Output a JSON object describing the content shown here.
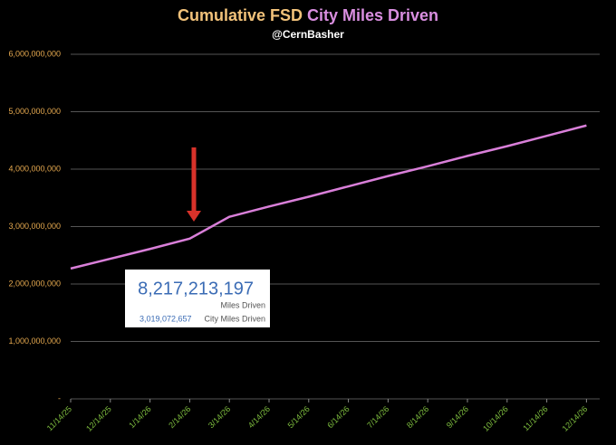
{
  "chart_data": {
    "type": "line",
    "title": [
      "Cumulative FSD",
      "City Miles Driven"
    ],
    "subtitle": "@CernBasher",
    "categories": [
      "11/14/25",
      "12/14/25",
      "1/14/26",
      "2/14/26",
      "3/14/26",
      "4/14/26",
      "5/14/26",
      "6/14/26",
      "7/14/26",
      "8/14/26",
      "9/14/26",
      "10/14/26",
      "11/14/26",
      "12/14/26"
    ],
    "series": [
      {
        "name": "City Miles Driven",
        "color": "#d97fd9",
        "values": [
          2270000000,
          2440000000,
          2610000000,
          2790000000,
          3170000000,
          3350000000,
          3520000000,
          3700000000,
          3880000000,
          4050000000,
          4230000000,
          4400000000,
          4580000000,
          4760000000
        ]
      }
    ],
    "ylim": [
      0,
      6000000000
    ],
    "yticks": [
      {
        "value": 0,
        "label": "-"
      },
      {
        "value": 1000000000,
        "label": "1,000,000,000"
      },
      {
        "value": 2000000000,
        "label": "2,000,000,000"
      },
      {
        "value": 3000000000,
        "label": "3,000,000,000"
      },
      {
        "value": 4000000000,
        "label": "4,000,000,000"
      },
      {
        "value": 5000000000,
        "label": "5,000,000,000"
      },
      {
        "value": 6000000000,
        "label": "6,000,000,000"
      }
    ],
    "grid": true,
    "callout": {
      "total": "8,217,213,197",
      "total_label": "Miles Driven",
      "city": "3,019,072,657",
      "city_label": "City Miles Driven"
    }
  }
}
